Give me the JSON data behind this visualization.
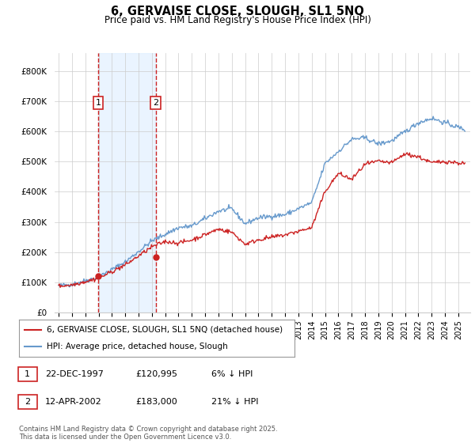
{
  "title_line1": "6, GERVAISE CLOSE, SLOUGH, SL1 5NQ",
  "title_line2": "Price paid vs. HM Land Registry's House Price Index (HPI)",
  "ylim": [
    0,
    860000
  ],
  "yticks": [
    0,
    100000,
    200000,
    300000,
    400000,
    500000,
    600000,
    700000,
    800000
  ],
  "ytick_labels": [
    "£0",
    "£100K",
    "£200K",
    "£300K",
    "£400K",
    "£500K",
    "£600K",
    "£700K",
    "£800K"
  ],
  "hpi_color": "#6699cc",
  "price_color": "#cc2222",
  "bg_shade_color": "#ddeeff",
  "dashed_line_color": "#cc2222",
  "marker1_x": 1997.97,
  "marker1_y": 120995,
  "marker2_x": 2002.28,
  "marker2_y": 183000,
  "sale1_label": "1",
  "sale2_label": "2",
  "legend_price_label": "6, GERVAISE CLOSE, SLOUGH, SL1 5NQ (detached house)",
  "legend_hpi_label": "HPI: Average price, detached house, Slough",
  "table_rows": [
    {
      "num": "1",
      "date": "22-DEC-1997",
      "price": "£120,995",
      "change": "6% ↓ HPI"
    },
    {
      "num": "2",
      "date": "12-APR-2002",
      "price": "£183,000",
      "change": "21% ↓ HPI"
    }
  ],
  "footer": "Contains HM Land Registry data © Crown copyright and database right 2025.\nThis data is licensed under the Open Government Licence v3.0.",
  "shade_x_start": 1997.97,
  "shade_x_end": 2002.28,
  "xlim_left": 1994.7,
  "xlim_right": 2025.9
}
